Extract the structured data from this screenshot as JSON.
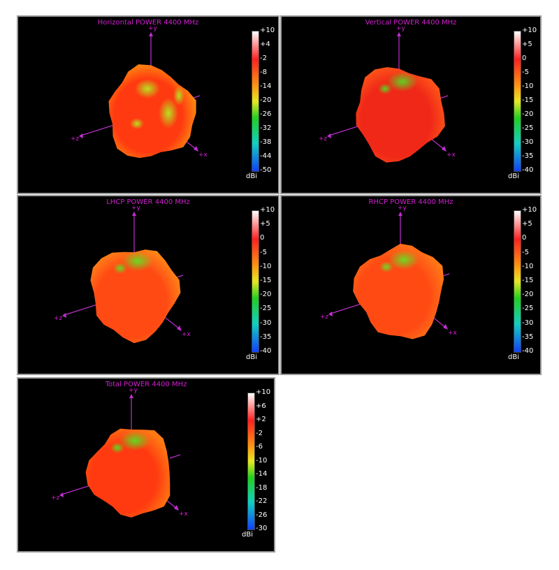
{
  "chart_data": [
    {
      "type": "3d-radiation-pattern",
      "title": "Horizontal POWER 4400  MHz",
      "colorbar": {
        "unit": "dBi",
        "ticks": [
          "+10",
          "+4",
          "-2",
          "-8",
          "-14",
          "-20",
          "-26",
          "-32",
          "-38",
          "-44",
          "-50"
        ],
        "range": [
          -50,
          10
        ]
      },
      "axes": {
        "y": "+y",
        "z": "+z",
        "x": "+x"
      },
      "dominant_colors": [
        "#ff3a10",
        "#ff9a10",
        "#b8e020"
      ]
    },
    {
      "type": "3d-radiation-pattern",
      "title": "Vertical POWER 4400  MHz",
      "colorbar": {
        "unit": "dBi",
        "ticks": [
          "+10",
          "+5",
          "0",
          "-5",
          "-10",
          "-15",
          "-20",
          "-25",
          "-30",
          "-35",
          "-40"
        ],
        "range": [
          -40,
          10
        ]
      },
      "axes": {
        "y": "+y",
        "z": "+z",
        "x": "+x"
      },
      "dominant_colors": [
        "#f02818",
        "#ff5a18",
        "#60d020"
      ]
    },
    {
      "type": "3d-radiation-pattern",
      "title": "LHCP POWER 4400  MHz",
      "colorbar": {
        "unit": "dBi",
        "ticks": [
          "+10",
          "+5",
          "0",
          "-5",
          "-10",
          "-15",
          "-20",
          "-25",
          "-30",
          "-35",
          "-40"
        ],
        "range": [
          -40,
          10
        ]
      },
      "axes": {
        "y": "+y",
        "z": "+z",
        "x": "+x"
      },
      "dominant_colors": [
        "#ff4a14",
        "#ff8a18",
        "#6ad820"
      ]
    },
    {
      "type": "3d-radiation-pattern",
      "title": "RHCP POWER 4400  MHz",
      "colorbar": {
        "unit": "dBi",
        "ticks": [
          "+10",
          "+5",
          "0",
          "-5",
          "-10",
          "-15",
          "-20",
          "-25",
          "-30",
          "-35",
          "-40"
        ],
        "range": [
          -40,
          10
        ]
      },
      "axes": {
        "y": "+y",
        "z": "+z",
        "x": "+x"
      },
      "dominant_colors": [
        "#ff4a14",
        "#ff7a18",
        "#70d820"
      ]
    },
    {
      "type": "3d-radiation-pattern",
      "title": "Total POWER 4400  MHz",
      "colorbar": {
        "unit": "dBi",
        "ticks": [
          "+10",
          "+6",
          "+2",
          "-2",
          "-6",
          "-10",
          "-14",
          "-18",
          "-22",
          "-26",
          "-30"
        ],
        "range": [
          -30,
          10
        ]
      },
      "axes": {
        "y": "+y",
        "z": "+z",
        "x": "+x"
      },
      "dominant_colors": [
        "#ff3a10",
        "#ff7a14",
        "#60d820"
      ]
    }
  ],
  "colors": {
    "panel_bg": "#000000",
    "title": "#d020d0",
    "axis": "#c030d0",
    "colorbar_stops": [
      "#ffffff",
      "#ff2020",
      "#ff9010",
      "#e8e820",
      "#20d020",
      "#10d0c0",
      "#1040ff"
    ]
  }
}
